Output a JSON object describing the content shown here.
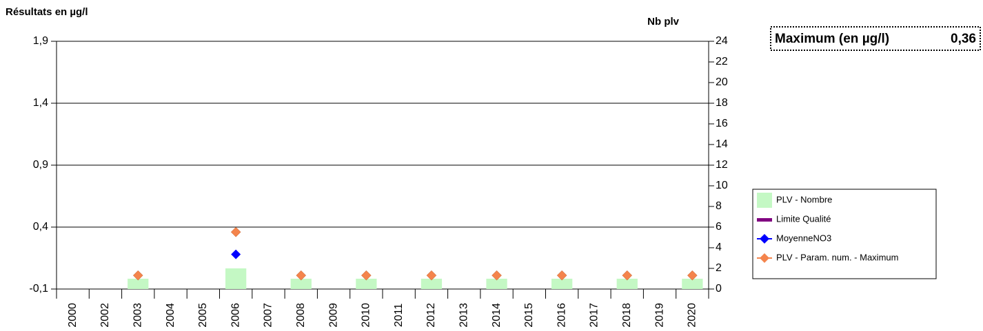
{
  "chart_data": {
    "type": "combo",
    "y_label": "Résultats en µg/l",
    "y2_label": "Nb plv",
    "summary": {
      "label": "Maximum (en µg/l)",
      "value": "0,36"
    },
    "categories": [
      "2000",
      "2002",
      "2003",
      "2004",
      "2005",
      "2006",
      "2007",
      "2008",
      "2009",
      "2010",
      "2011",
      "2012",
      "2013",
      "2014",
      "2015",
      "2016",
      "2017",
      "2018",
      "2019",
      "2020"
    ],
    "ylim": [
      -0.1,
      1.9
    ],
    "yticks": [
      {
        "value": -0.1,
        "label": "-0,1"
      },
      {
        "value": 0.4,
        "label": "0,4"
      },
      {
        "value": 0.9,
        "label": "0,9"
      },
      {
        "value": 1.4,
        "label": "1,4"
      },
      {
        "value": 1.9,
        "label": "1,9"
      }
    ],
    "y2lim": [
      0,
      24
    ],
    "y2ticks": [
      0,
      2,
      4,
      6,
      8,
      10,
      12,
      14,
      16,
      18,
      20,
      22,
      24
    ],
    "grid": true,
    "legend": "right",
    "series": [
      {
        "name": "PLV - Nombre",
        "type": "bar",
        "axis": "y2",
        "color": "#c4f8c4",
        "values": [
          null,
          null,
          1,
          null,
          null,
          2,
          null,
          1,
          null,
          1,
          null,
          1,
          null,
          1,
          null,
          1,
          null,
          1,
          null,
          1
        ]
      },
      {
        "name": "Limite Qualité",
        "type": "line",
        "color": "#800080",
        "values": [
          null,
          null,
          null,
          null,
          null,
          null,
          null,
          null,
          null,
          null,
          null,
          null,
          null,
          null,
          null,
          null,
          null,
          null,
          null,
          null
        ]
      },
      {
        "name": "MoyenneNO3",
        "type": "scatter",
        "color": "#0000ff",
        "values": [
          null,
          null,
          null,
          null,
          null,
          0.18,
          null,
          null,
          null,
          null,
          null,
          null,
          null,
          null,
          null,
          null,
          null,
          null,
          null,
          null
        ]
      },
      {
        "name": "PLV - Param. num. - Maximum",
        "type": "scatter",
        "color": "#f4844c",
        "values": [
          null,
          null,
          0.01,
          null,
          null,
          0.36,
          null,
          0.01,
          null,
          0.01,
          null,
          0.01,
          null,
          0.01,
          null,
          0.01,
          null,
          0.01,
          null,
          0.01
        ]
      }
    ]
  }
}
